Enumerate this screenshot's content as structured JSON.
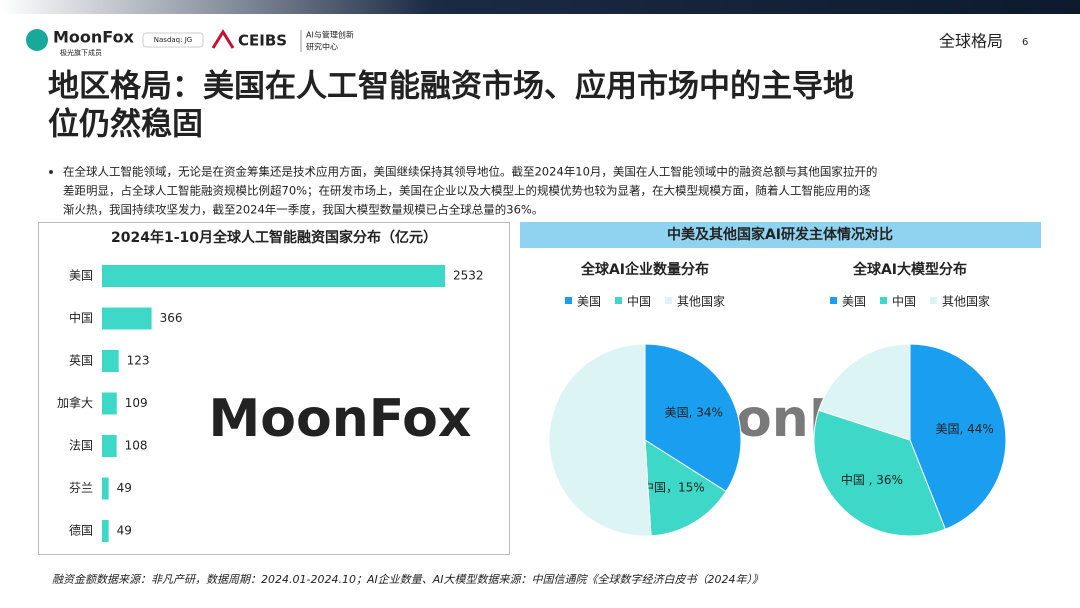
{
  "header": {
    "brand": "MoonFox",
    "brand_sub": "极光旗下成员",
    "nasdaq": "Nasdaq: JG",
    "ceibs": "CEIBS",
    "ceibs_sub": [
      "AI与管理创新",
      "研究中心"
    ],
    "section": "全球格局",
    "page": "6"
  },
  "title": [
    "地区格局：美国在人工智能融资市场、应用市场中的主导地",
    "位仍然稳固"
  ],
  "bullet": [
    "在全球人工智能领域，无论是在资金筹集还是技术应用方面，美国继续保持其领导地位。截至2024年10月，美国在人工智能领域中的融资总额与其他国家拉开的",
    "差距明显，占全球人工智能融资规模比例超70%；在研发市场上，美国在企业以及大模型上的规模优势也较为显著，在大模型规模方面，随着人工智能应用的逐",
    "渐火热，我国持续攻坚发力，截至2024年一季度，我国大模型数量规模已占全球总量的36%。"
  ],
  "panel_title": "中美及其他国家AI研发主体情况对比",
  "watermark": "MoonFox",
  "source": "融资金额数据来源：非凡产研，数据周期：2024.01-2024.10；AI企业数量、AI大模型数据来源：中国信通院《全球数字经济白皮书（2024年）》",
  "chart_data": [
    {
      "type": "hbar",
      "title": "2024年1-10月全球人工智能融资国家分布（亿元）",
      "categories": [
        "美国",
        "中国",
        "英国",
        "加拿大",
        "法国",
        "芬兰",
        "德国"
      ],
      "values": [
        2532,
        366,
        123,
        109,
        108,
        49,
        49
      ],
      "color": "#3dd8c8"
    },
    {
      "type": "pie",
      "title": "全球AI企业数量分布",
      "categories": [
        "美国",
        "中国",
        "其他国家"
      ],
      "values": [
        34,
        15,
        51
      ],
      "colors": [
        "#1a9ff0",
        "#3dd8c8",
        "#dcf4f3"
      ],
      "value_labels": [
        "美国, 34%",
        "中国，15%",
        null
      ]
    },
    {
      "type": "pie",
      "title": "全球AI大模型分布",
      "categories": [
        "美国",
        "中国",
        "其他国家"
      ],
      "values": [
        44,
        36,
        20
      ],
      "colors": [
        "#1a9ff0",
        "#3dd8c8",
        "#dcf4f3"
      ],
      "value_labels": [
        "美国, 44%",
        "中国 , 36%",
        null
      ]
    }
  ]
}
